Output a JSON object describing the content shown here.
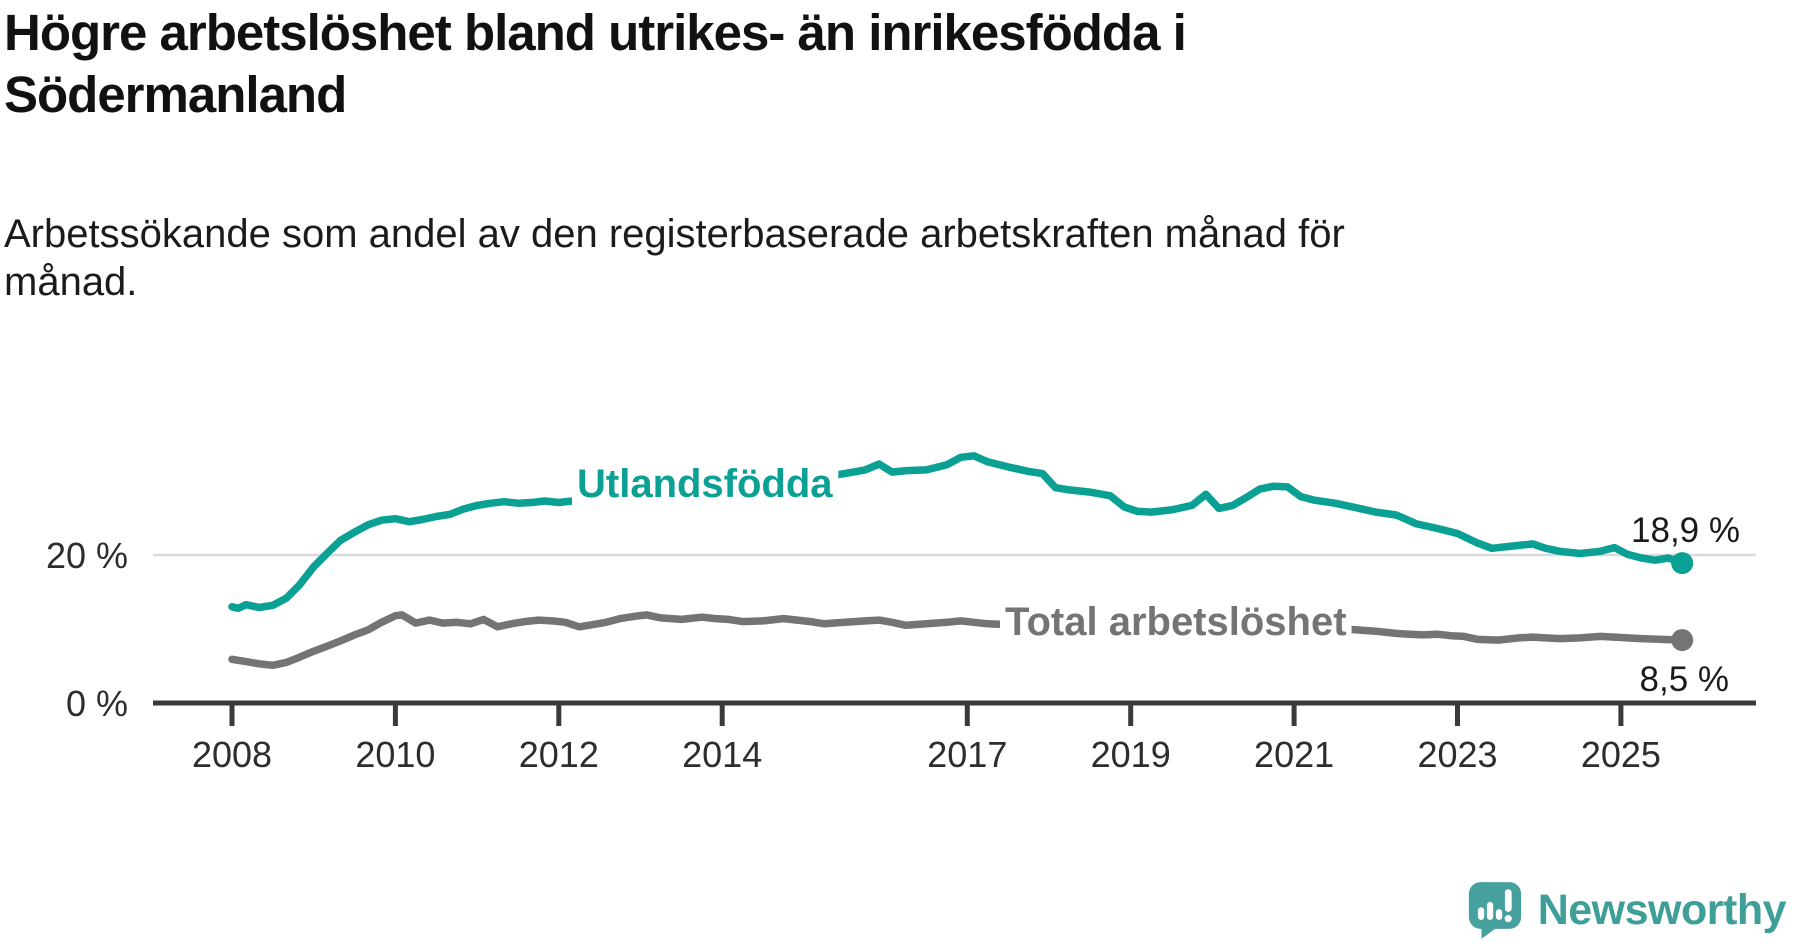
{
  "title": {
    "line1": "Högre arbetslöshet bland utrikes- än inrikesfödda i",
    "line2": "Södermanland"
  },
  "subtitle": {
    "line1": "Arbetssökande som andel av den registerbaserade arbetskraften månad för",
    "line2": "månad."
  },
  "branding": {
    "logo_text": "Newsworthy",
    "logo_color": "#3e9e98"
  },
  "colors": {
    "foreign_born_line": "#0ba094",
    "total_line": "#747474",
    "axis": "#3a3a3a",
    "gridline": "#dadada",
    "end_label_text": "#1a1a1a",
    "background": "#ffffff"
  },
  "chart_data": {
    "type": "line",
    "title": "Högre arbetslöshet bland utrikes- än inrikesfödda i Södermanland",
    "subtitle": "Arbetssökande som andel av den registerbaserade arbetskraften månad för månad.",
    "xlabel": "",
    "ylabel": "",
    "grid": "single-horizontal-gridline-at-20",
    "gridline_values": [
      20
    ],
    "legend_position": "inline-labels-on-lines",
    "x_axis": {
      "unit": "year",
      "tick_values": [
        2008,
        2010,
        2012,
        2014,
        2017,
        2019,
        2021,
        2023,
        2025
      ],
      "tick_labels": [
        "2008",
        "2010",
        "2012",
        "2014",
        "2017",
        "2019",
        "2021",
        "2023",
        "2025"
      ],
      "data_range": [
        2008.0,
        2025.75
      ]
    },
    "y_axis": {
      "unit": "percent",
      "ticks": [
        {
          "value": 0,
          "label": "0 %"
        },
        {
          "value": 20,
          "label": "20 %"
        }
      ],
      "range": [
        0,
        35
      ]
    },
    "series": [
      {
        "name": "Utlandsfödda",
        "color": "#0ba094",
        "end_value": 18.9,
        "end_label": "18,9 %",
        "points": [
          [
            2008.0,
            13.0
          ],
          [
            2008.08,
            12.8
          ],
          [
            2008.17,
            13.3
          ],
          [
            2008.33,
            12.9
          ],
          [
            2008.5,
            13.2
          ],
          [
            2008.67,
            14.2
          ],
          [
            2008.83,
            16.0
          ],
          [
            2009.0,
            18.4
          ],
          [
            2009.17,
            20.3
          ],
          [
            2009.33,
            22.0
          ],
          [
            2009.5,
            23.1
          ],
          [
            2009.67,
            24.1
          ],
          [
            2009.83,
            24.7
          ],
          [
            2010.0,
            24.9
          ],
          [
            2010.17,
            24.5
          ],
          [
            2010.33,
            24.8
          ],
          [
            2010.5,
            25.2
          ],
          [
            2010.67,
            25.5
          ],
          [
            2010.83,
            26.2
          ],
          [
            2011.0,
            26.7
          ],
          [
            2011.17,
            27.0
          ],
          [
            2011.33,
            27.2
          ],
          [
            2011.5,
            27.0
          ],
          [
            2011.67,
            27.1
          ],
          [
            2011.83,
            27.3
          ],
          [
            2012.0,
            27.1
          ],
          [
            2012.25,
            27.4
          ],
          [
            2012.5,
            27.6
          ],
          [
            2012.75,
            27.9
          ],
          [
            2013.0,
            28.2
          ],
          [
            2013.25,
            28.4
          ],
          [
            2013.5,
            28.7
          ],
          [
            2013.75,
            29.0
          ],
          [
            2014.0,
            29.3
          ],
          [
            2014.25,
            29.5
          ],
          [
            2014.5,
            29.8
          ],
          [
            2014.75,
            30.1
          ],
          [
            2015.0,
            30.3
          ],
          [
            2015.25,
            30.6
          ],
          [
            2015.5,
            31.0
          ],
          [
            2015.75,
            31.5
          ],
          [
            2015.92,
            32.3
          ],
          [
            2016.08,
            31.2
          ],
          [
            2016.25,
            31.4
          ],
          [
            2016.5,
            31.5
          ],
          [
            2016.75,
            32.2
          ],
          [
            2016.92,
            33.2
          ],
          [
            2017.08,
            33.4
          ],
          [
            2017.25,
            32.6
          ],
          [
            2017.5,
            31.9
          ],
          [
            2017.75,
            31.3
          ],
          [
            2017.92,
            31.0
          ],
          [
            2018.08,
            29.1
          ],
          [
            2018.25,
            28.8
          ],
          [
            2018.5,
            28.5
          ],
          [
            2018.75,
            28.0
          ],
          [
            2018.92,
            26.5
          ],
          [
            2019.08,
            25.9
          ],
          [
            2019.25,
            25.8
          ],
          [
            2019.5,
            26.1
          ],
          [
            2019.75,
            26.7
          ],
          [
            2019.92,
            28.2
          ],
          [
            2020.08,
            26.3
          ],
          [
            2020.25,
            26.7
          ],
          [
            2020.42,
            27.8
          ],
          [
            2020.58,
            28.9
          ],
          [
            2020.75,
            29.3
          ],
          [
            2020.92,
            29.2
          ],
          [
            2021.08,
            27.9
          ],
          [
            2021.25,
            27.4
          ],
          [
            2021.5,
            27.0
          ],
          [
            2021.75,
            26.4
          ],
          [
            2022.0,
            25.8
          ],
          [
            2022.25,
            25.4
          ],
          [
            2022.5,
            24.2
          ],
          [
            2022.75,
            23.6
          ],
          [
            2023.0,
            22.9
          ],
          [
            2023.25,
            21.6
          ],
          [
            2023.42,
            20.9
          ],
          [
            2023.58,
            21.1
          ],
          [
            2023.75,
            21.3
          ],
          [
            2023.92,
            21.5
          ],
          [
            2024.08,
            20.9
          ],
          [
            2024.25,
            20.5
          ],
          [
            2024.5,
            20.2
          ],
          [
            2024.75,
            20.5
          ],
          [
            2024.92,
            21.0
          ],
          [
            2025.08,
            20.1
          ],
          [
            2025.25,
            19.6
          ],
          [
            2025.42,
            19.3
          ],
          [
            2025.58,
            19.6
          ],
          [
            2025.75,
            18.9
          ]
        ]
      },
      {
        "name": "Total arbetslöshet",
        "color": "#747474",
        "end_value": 8.5,
        "end_label": "8,5 %",
        "points": [
          [
            2008.0,
            5.9
          ],
          [
            2008.17,
            5.6
          ],
          [
            2008.33,
            5.3
          ],
          [
            2008.5,
            5.1
          ],
          [
            2008.67,
            5.5
          ],
          [
            2008.83,
            6.2
          ],
          [
            2009.0,
            7.0
          ],
          [
            2009.17,
            7.7
          ],
          [
            2009.33,
            8.4
          ],
          [
            2009.5,
            9.2
          ],
          [
            2009.67,
            9.9
          ],
          [
            2009.83,
            10.9
          ],
          [
            2010.0,
            11.8
          ],
          [
            2010.08,
            11.9
          ],
          [
            2010.25,
            10.8
          ],
          [
            2010.42,
            11.2
          ],
          [
            2010.58,
            10.8
          ],
          [
            2010.75,
            10.9
          ],
          [
            2010.92,
            10.7
          ],
          [
            2011.08,
            11.3
          ],
          [
            2011.25,
            10.3
          ],
          [
            2011.42,
            10.7
          ],
          [
            2011.58,
            11.0
          ],
          [
            2011.75,
            11.2
          ],
          [
            2011.92,
            11.1
          ],
          [
            2012.08,
            10.9
          ],
          [
            2012.25,
            10.3
          ],
          [
            2012.42,
            10.6
          ],
          [
            2012.58,
            10.9
          ],
          [
            2012.75,
            11.4
          ],
          [
            2012.92,
            11.7
          ],
          [
            2013.08,
            11.9
          ],
          [
            2013.25,
            11.5
          ],
          [
            2013.5,
            11.3
          ],
          [
            2013.75,
            11.6
          ],
          [
            2013.92,
            11.4
          ],
          [
            2014.08,
            11.3
          ],
          [
            2014.25,
            11.0
          ],
          [
            2014.5,
            11.1
          ],
          [
            2014.75,
            11.4
          ],
          [
            2014.92,
            11.2
          ],
          [
            2015.08,
            11.0
          ],
          [
            2015.25,
            10.7
          ],
          [
            2015.5,
            10.9
          ],
          [
            2015.75,
            11.1
          ],
          [
            2015.92,
            11.2
          ],
          [
            2016.08,
            10.9
          ],
          [
            2016.25,
            10.5
          ],
          [
            2016.5,
            10.7
          ],
          [
            2016.75,
            10.9
          ],
          [
            2016.92,
            11.1
          ],
          [
            2017.08,
            10.9
          ],
          [
            2017.25,
            10.7
          ],
          [
            2017.5,
            10.6
          ],
          [
            2017.75,
            10.4
          ],
          [
            2018.0,
            10.1
          ],
          [
            2018.25,
            9.8
          ],
          [
            2018.5,
            9.7
          ],
          [
            2018.75,
            9.8
          ],
          [
            2019.0,
            9.6
          ],
          [
            2019.25,
            9.4
          ],
          [
            2019.5,
            9.5
          ],
          [
            2019.75,
            9.8
          ],
          [
            2020.0,
            9.9
          ],
          [
            2020.25,
            10.6
          ],
          [
            2020.5,
            11.2
          ],
          [
            2020.75,
            11.1
          ],
          [
            2021.0,
            10.9
          ],
          [
            2021.25,
            10.4
          ],
          [
            2021.5,
            10.0
          ],
          [
            2021.75,
            9.9
          ],
          [
            2022.0,
            9.7
          ],
          [
            2022.25,
            9.4
          ],
          [
            2022.42,
            9.3
          ],
          [
            2022.58,
            9.2
          ],
          [
            2022.75,
            9.3
          ],
          [
            2022.92,
            9.1
          ],
          [
            2023.08,
            9.0
          ],
          [
            2023.25,
            8.6
          ],
          [
            2023.5,
            8.5
          ],
          [
            2023.75,
            8.8
          ],
          [
            2023.92,
            8.9
          ],
          [
            2024.08,
            8.8
          ],
          [
            2024.25,
            8.7
          ],
          [
            2024.5,
            8.8
          ],
          [
            2024.75,
            9.0
          ],
          [
            2024.92,
            8.9
          ],
          [
            2025.08,
            8.8
          ],
          [
            2025.25,
            8.7
          ],
          [
            2025.5,
            8.6
          ],
          [
            2025.75,
            8.5
          ]
        ]
      }
    ]
  }
}
